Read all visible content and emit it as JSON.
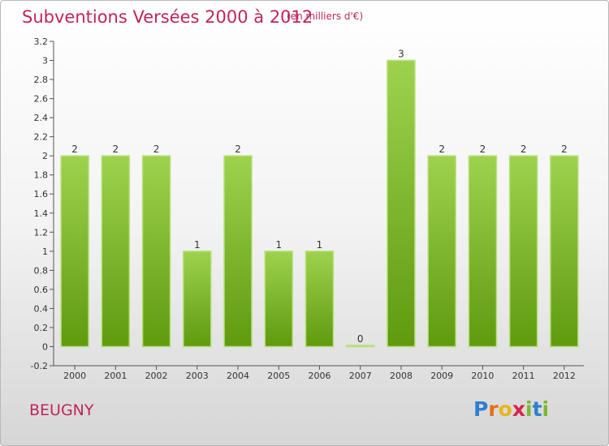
{
  "header": {
    "title": "Subventions Versées 2000 à 2012",
    "unit": "(en milliers d'€)"
  },
  "footer": {
    "commune": "BEUGNY",
    "logo": [
      "P",
      "r",
      "o",
      "x",
      "i",
      "t",
      "i"
    ]
  },
  "colors": {
    "title": "#c0245c",
    "bar_light": "#9ed24e",
    "bar_dark": "#5f9a0f",
    "logo": [
      "#2f7fd0",
      "#e86c1a",
      "#e8b51a",
      "#d6244d",
      "#7cb82f",
      "#2f7fd0",
      "#7cb82f"
    ]
  },
  "chart_data": {
    "type": "bar",
    "categories": [
      "2000",
      "2001",
      "2002",
      "2003",
      "2004",
      "2005",
      "2006",
      "2007",
      "2008",
      "2009",
      "2010",
      "2011",
      "2012"
    ],
    "values": [
      2,
      2,
      2,
      1,
      2,
      1,
      1,
      0,
      3,
      2,
      2,
      2,
      2
    ],
    "data_labels": [
      "2",
      "2",
      "2",
      "1",
      "2",
      "1",
      "1",
      "0",
      "3",
      "2",
      "2",
      "2",
      "2"
    ],
    "ylim": [
      -0.2,
      3.2
    ],
    "yticks": [
      "-0.2",
      "0",
      "0.2",
      "0.4",
      "0.6",
      "0.8",
      "1",
      "1.2",
      "1.4",
      "1.6",
      "1.8",
      "2",
      "2.2",
      "2.4",
      "2.6",
      "2.8",
      "3",
      "3.2"
    ],
    "ytick_values": [
      -0.2,
      0,
      0.2,
      0.4,
      0.6,
      0.8,
      1,
      1.2,
      1.4,
      1.6,
      1.8,
      2,
      2.2,
      2.4,
      2.6,
      2.8,
      3,
      3.2
    ],
    "title": "Subventions Versées 2000 à 2012",
    "xlabel": "",
    "ylabel": "",
    "grid": false,
    "legend": "none"
  }
}
